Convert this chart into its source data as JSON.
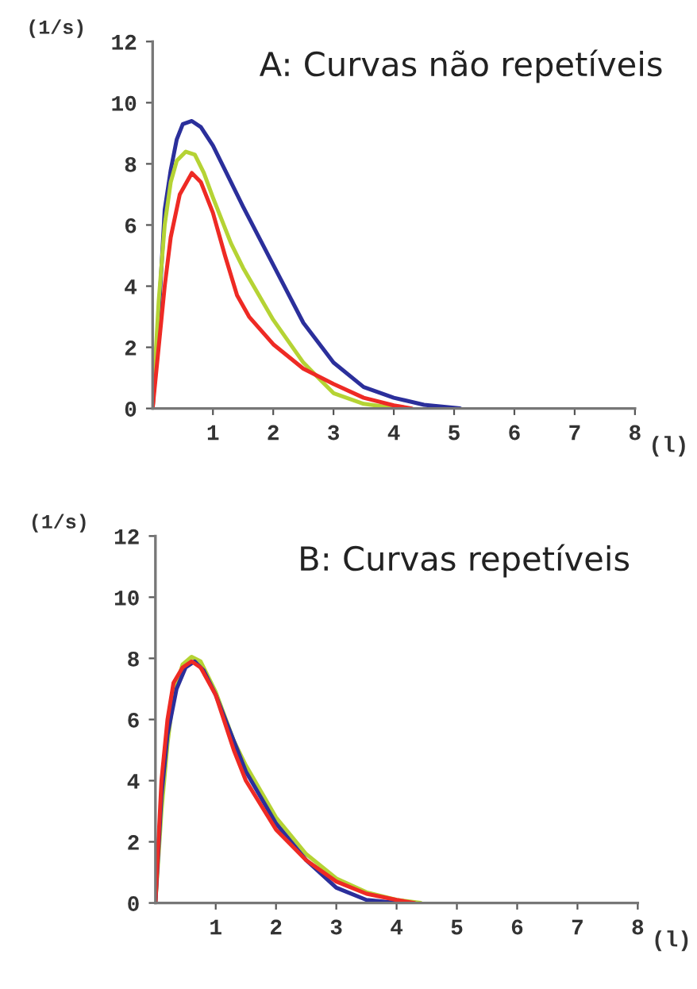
{
  "chart_data": [
    {
      "type": "line",
      "title": "A: Curvas não repetíveis",
      "xlabel": "(l)",
      "ylabel": "(1/s)",
      "xlim": [
        0,
        8
      ],
      "ylim": [
        0,
        12
      ],
      "xticks": [
        1,
        2,
        3,
        4,
        5,
        6,
        7,
        8
      ],
      "yticks": [
        0,
        2,
        4,
        6,
        8,
        10,
        12
      ],
      "grid": false,
      "legend": false,
      "marker": "none",
      "line_style": "solid",
      "series": [
        {
          "color": "#2b2f9b",
          "x": [
            0,
            0.1,
            0.2,
            0.3,
            0.4,
            0.5,
            0.65,
            0.8,
            1.0,
            1.2,
            1.5,
            2.0,
            2.5,
            3.0,
            3.5,
            4.0,
            4.5,
            5.1
          ],
          "values": [
            0,
            3,
            6.5,
            7.8,
            8.8,
            9.3,
            9.4,
            9.2,
            8.6,
            7.8,
            6.6,
            4.7,
            2.8,
            1.5,
            0.7,
            0.35,
            0.12,
            0
          ]
        },
        {
          "color": "#b5d334",
          "x": [
            0,
            0.1,
            0.2,
            0.3,
            0.4,
            0.55,
            0.7,
            0.85,
            1.0,
            1.3,
            1.5,
            2.0,
            2.5,
            2.8,
            3.0,
            3.5,
            4.0,
            4.1
          ],
          "values": [
            0,
            3.5,
            6,
            7.4,
            8.1,
            8.4,
            8.3,
            7.7,
            6.9,
            5.4,
            4.6,
            2.9,
            1.5,
            0.9,
            0.5,
            0.15,
            0.02,
            0
          ]
        },
        {
          "color": "#ee2a24",
          "x": [
            0,
            0.1,
            0.2,
            0.3,
            0.45,
            0.65,
            0.8,
            1.0,
            1.2,
            1.4,
            1.6,
            2.0,
            2.5,
            3.0,
            3.5,
            4.0,
            4.3
          ],
          "values": [
            0,
            2,
            4,
            5.6,
            7,
            7.7,
            7.4,
            6.4,
            5.0,
            3.7,
            3.0,
            2.1,
            1.3,
            0.8,
            0.35,
            0.1,
            0
          ]
        }
      ]
    },
    {
      "type": "line",
      "title": "B: Curvas repetíveis",
      "xlabel": "(l)",
      "ylabel": "(1/s)",
      "xlim": [
        0,
        8
      ],
      "ylim": [
        0,
        12
      ],
      "xticks": [
        1,
        2,
        3,
        4,
        5,
        6,
        7,
        8
      ],
      "yticks": [
        0,
        2,
        4,
        6,
        8,
        10,
        12
      ],
      "grid": false,
      "legend": false,
      "marker": "none",
      "line_style": "solid",
      "series": [
        {
          "color": "#b5d334",
          "x": [
            0,
            0.1,
            0.2,
            0.3,
            0.45,
            0.6,
            0.75,
            1.0,
            1.3,
            1.5,
            2.0,
            2.5,
            3.0,
            3.5,
            4.0,
            4.4
          ],
          "values": [
            0,
            3,
            5.2,
            6.8,
            7.8,
            8.05,
            7.9,
            6.9,
            5.3,
            4.5,
            2.8,
            1.6,
            0.8,
            0.35,
            0.1,
            0
          ]
        },
        {
          "color": "#2b2f9b",
          "x": [
            0,
            0.1,
            0.2,
            0.35,
            0.5,
            0.65,
            0.8,
            1.0,
            1.3,
            1.5,
            2.0,
            2.5,
            3.0,
            3.5,
            4.0
          ],
          "values": [
            0,
            3.5,
            5.5,
            7.0,
            7.7,
            7.9,
            7.6,
            6.8,
            5.3,
            4.3,
            2.6,
            1.4,
            0.5,
            0.1,
            0
          ]
        },
        {
          "color": "#ee2a24",
          "x": [
            0,
            0.1,
            0.2,
            0.3,
            0.45,
            0.6,
            0.75,
            1.0,
            1.3,
            1.5,
            2.0,
            2.5,
            3.0,
            3.5,
            4.0,
            4.3
          ],
          "values": [
            0,
            4,
            6,
            7.2,
            7.7,
            7.9,
            7.7,
            6.8,
            5.0,
            4.0,
            2.4,
            1.4,
            0.7,
            0.3,
            0.1,
            0
          ]
        }
      ]
    }
  ]
}
